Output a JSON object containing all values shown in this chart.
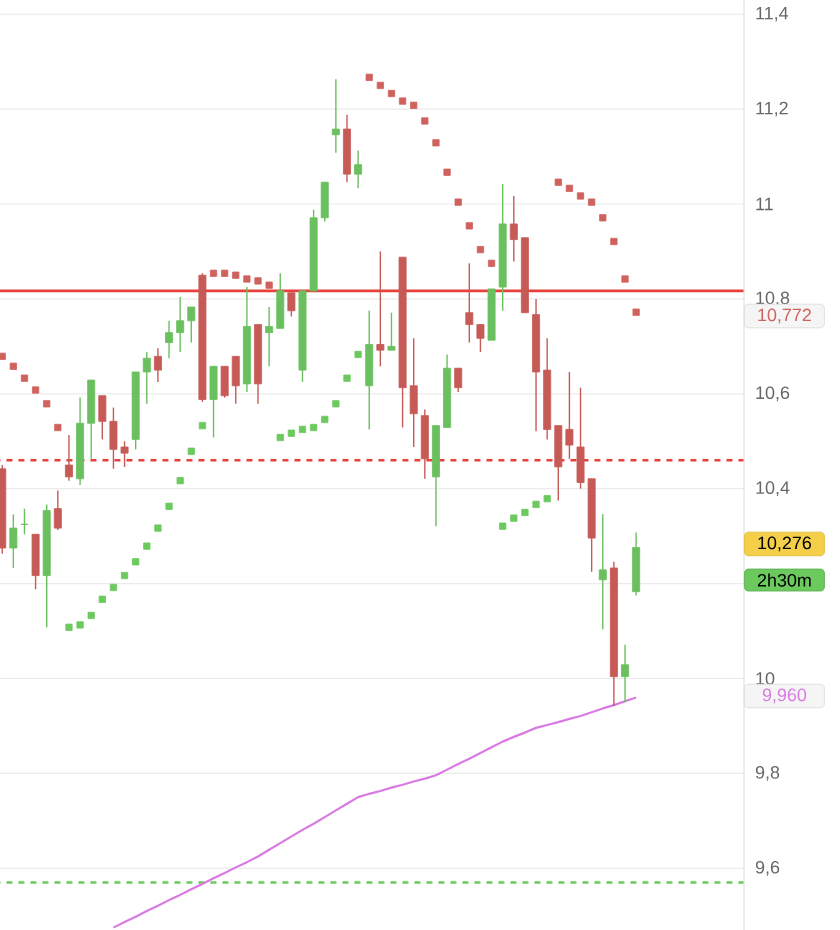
{
  "chart_data": {
    "type": "candlestick",
    "categories": [
      null,
      null,
      null,
      null,
      null,
      null,
      null,
      null,
      null,
      null,
      null,
      null,
      null,
      null,
      null,
      null,
      null,
      null,
      null,
      null,
      null,
      null,
      null,
      null,
      null,
      null,
      null,
      null,
      null,
      null,
      null,
      null,
      null,
      null,
      null,
      null,
      null,
      null,
      null,
      null,
      null,
      null,
      null,
      null,
      null,
      null,
      null,
      null,
      null,
      null,
      null,
      null,
      null,
      null,
      null,
      null,
      null,
      null
    ],
    "ohlc": [
      [
        10.442,
        10.45,
        10.263,
        10.275
      ],
      [
        10.275,
        10.346,
        10.233,
        10.317
      ],
      [
        10.325,
        10.358,
        10.304,
        10.325
      ],
      [
        10.304,
        10.304,
        10.188,
        10.217
      ],
      [
        10.217,
        10.367,
        10.108,
        10.354
      ],
      [
        10.358,
        10.396,
        10.313,
        10.317
      ],
      [
        10.45,
        10.513,
        10.417,
        10.425
      ],
      [
        10.421,
        10.592,
        10.408,
        10.538
      ],
      [
        10.538,
        10.629,
        10.463,
        10.629
      ],
      [
        10.596,
        10.596,
        10.504,
        10.542
      ],
      [
        10.542,
        10.571,
        10.442,
        10.483
      ],
      [
        10.488,
        10.5,
        10.446,
        10.475
      ],
      [
        10.504,
        10.646,
        10.483,
        10.646
      ],
      [
        10.646,
        10.688,
        10.579,
        10.675
      ],
      [
        10.679,
        10.696,
        10.625,
        10.65
      ],
      [
        10.708,
        10.754,
        10.675,
        10.729
      ],
      [
        10.729,
        10.804,
        10.688,
        10.754
      ],
      [
        10.754,
        10.783,
        10.708,
        10.783
      ],
      [
        10.85,
        10.854,
        10.583,
        10.588
      ],
      [
        10.588,
        10.658,
        10.508,
        10.658
      ],
      [
        10.658,
        10.658,
        10.592,
        10.596
      ],
      [
        10.679,
        10.679,
        10.579,
        10.617
      ],
      [
        10.621,
        10.825,
        10.604,
        10.742
      ],
      [
        10.746,
        10.746,
        10.579,
        10.621
      ],
      [
        10.729,
        10.783,
        10.658,
        10.742
      ],
      [
        10.738,
        10.854,
        10.738,
        10.817
      ],
      [
        10.813,
        10.813,
        10.763,
        10.775
      ],
      [
        10.65,
        10.817,
        10.625,
        10.817
      ],
      [
        10.817,
        10.988,
        10.817,
        10.971
      ],
      [
        10.971,
        11.046,
        10.963,
        11.046
      ],
      [
        11.146,
        11.263,
        11.108,
        11.158
      ],
      [
        11.158,
        11.188,
        11.046,
        11.063
      ],
      [
        11.063,
        11.113,
        11.033,
        11.083
      ],
      [
        10.617,
        10.775,
        10.525,
        10.704
      ],
      [
        10.704,
        10.9,
        10.658,
        10.692
      ],
      [
        10.692,
        10.771,
        10.692,
        10.7
      ],
      [
        10.888,
        10.888,
        10.529,
        10.613
      ],
      [
        10.617,
        10.717,
        10.488,
        10.558
      ],
      [
        10.554,
        10.567,
        10.421,
        10.463
      ],
      [
        10.425,
        10.533,
        10.321,
        10.533
      ],
      [
        10.529,
        10.683,
        10.529,
        10.654
      ],
      [
        10.654,
        10.654,
        10.604,
        10.613
      ],
      [
        10.771,
        10.875,
        10.708,
        10.746
      ],
      [
        10.746,
        10.746,
        10.688,
        10.717
      ],
      [
        10.713,
        10.821,
        10.713,
        10.821
      ],
      [
        10.825,
        11.042,
        10.775,
        10.958
      ],
      [
        10.958,
        11.017,
        10.879,
        10.925
      ],
      [
        10.929,
        10.929,
        10.771,
        10.771
      ],
      [
        10.767,
        10.8,
        10.521,
        10.646
      ],
      [
        10.65,
        10.717,
        10.504,
        10.525
      ],
      [
        10.533,
        10.533,
        10.375,
        10.446
      ],
      [
        10.525,
        10.646,
        10.463,
        10.492
      ],
      [
        10.488,
        10.613,
        10.4,
        10.413
      ],
      [
        10.421,
        10.421,
        10.225,
        10.296
      ],
      [
        10.208,
        10.346,
        10.104,
        10.229
      ],
      [
        10.233,
        10.246,
        9.942,
        10.004
      ],
      [
        10.004,
        10.071,
        9.95,
        10.029
      ],
      [
        10.183,
        10.308,
        10.175,
        10.276
      ]
    ],
    "colors": [
      "#c65a56",
      "#6abf5e",
      "#6abf5e",
      "#c65a56",
      "#6abf5e",
      "#c65a56",
      "#c65a56",
      "#6abf5e",
      "#6abf5e",
      "#c65a56",
      "#c65a56",
      "#c65a56",
      "#6abf5e",
      "#6abf5e",
      "#c65a56",
      "#6abf5e",
      "#6abf5e",
      "#6abf5e",
      "#c65a56",
      "#6abf5e",
      "#c65a56",
      "#c65a56",
      "#6abf5e",
      "#c65a56",
      "#6abf5e",
      "#6abf5e",
      "#c65a56",
      "#6abf5e",
      "#6abf5e",
      "#6abf5e",
      "#6abf5e",
      "#c65a56",
      "#6abf5e",
      "#6abf5e",
      "#c65a56",
      "#6abf5e",
      "#c65a56",
      "#c65a56",
      "#c65a56",
      "#6abf5e",
      "#6abf5e",
      "#c65a56",
      "#c65a56",
      "#c65a56",
      "#6abf5e",
      "#6abf5e",
      "#c65a56",
      "#c65a56",
      "#c65a56",
      "#c65a56",
      "#c65a56",
      "#c65a56",
      "#c65a56",
      "#c65a56",
      "#6abf5e",
      "#c65a56",
      "#6abf5e",
      "#6abf5e"
    ],
    "series": [
      {
        "type": "scatter",
        "color": "#d0625e",
        "marker": "square",
        "values": [
          10.679,
          10.658,
          10.633,
          10.608,
          10.579,
          10.529,
          null,
          null,
          null,
          null,
          null,
          null,
          null,
          null,
          null,
          null,
          null,
          null,
          null,
          10.854,
          10.854,
          10.85,
          10.842,
          10.838,
          10.829,
          null,
          null,
          null,
          null,
          null,
          null,
          null,
          null,
          11.267,
          11.25,
          11.233,
          11.217,
          11.208,
          11.175,
          11.129,
          11.067,
          11.004,
          10.954,
          10.904,
          10.875,
          null,
          null,
          null,
          null,
          null,
          11.046,
          11.033,
          11.017,
          11.004,
          10.971,
          10.921,
          10.842,
          10.772
        ]
      },
      {
        "type": "scatter",
        "color": "#6cc95e",
        "marker": "square",
        "values": [
          null,
          null,
          null,
          null,
          null,
          null,
          10.108,
          10.113,
          10.133,
          10.167,
          10.192,
          10.217,
          10.246,
          10.279,
          10.317,
          10.363,
          10.417,
          10.479,
          10.533,
          null,
          null,
          null,
          null,
          null,
          null,
          10.508,
          10.517,
          10.525,
          10.529,
          10.546,
          10.579,
          10.633,
          10.683,
          null,
          null,
          null,
          null,
          null,
          null,
          null,
          null,
          null,
          null,
          null,
          null,
          10.321,
          10.338,
          10.35,
          10.367,
          10.379,
          null,
          null,
          null,
          null,
          null,
          null,
          null,
          null
        ]
      },
      {
        "type": "line",
        "color": "#d97ae3",
        "values": [
          null,
          null,
          null,
          null,
          null,
          null,
          null,
          null,
          null,
          null,
          9.475,
          9.487,
          9.498,
          9.51,
          9.521,
          9.533,
          9.544,
          9.556,
          9.567,
          9.579,
          9.59,
          9.602,
          9.613,
          9.625,
          9.639,
          9.653,
          9.667,
          9.681,
          9.694,
          9.708,
          9.722,
          9.736,
          9.75,
          9.757,
          9.763,
          9.77,
          9.776,
          9.783,
          9.789,
          9.796,
          9.808,
          9.82,
          9.831,
          9.843,
          9.855,
          9.867,
          9.877,
          9.886,
          9.896,
          9.902,
          9.908,
          9.915,
          9.921,
          9.929,
          9.937,
          9.944,
          9.952,
          9.96
        ]
      }
    ],
    "ylim": [
      9.47,
      11.43
    ],
    "yticks": [
      {
        "value": 11.4,
        "label": "11,4"
      },
      {
        "value": 11.2,
        "label": "11,2"
      },
      {
        "value": 11,
        "label": "11"
      },
      {
        "value": 10.8,
        "label": "10,8"
      },
      {
        "value": 10.6,
        "label": "10,6"
      },
      {
        "value": 10.4,
        "label": "10,4"
      },
      {
        "value": 10.2,
        "label": null
      },
      {
        "value": 10,
        "label": "10"
      },
      {
        "value": 9.8,
        "label": "9,8"
      },
      {
        "value": 9.6,
        "label": "9,6"
      }
    ],
    "grid": "y",
    "tick_labels": "y",
    "ref_lines": [
      {
        "axis": "y",
        "value": 10.817,
        "color": "#e8403a",
        "line_style": "solid"
      },
      {
        "axis": "y",
        "value": 10.46,
        "color": "#e8403a",
        "line_style": "dashed"
      },
      {
        "axis": "y",
        "value": 9.57,
        "color": "#6cc95e",
        "line_style": "dashed"
      }
    ],
    "annotations": [
      "10,772",
      "10,276",
      "2h30m",
      "9,960"
    ]
  }
}
